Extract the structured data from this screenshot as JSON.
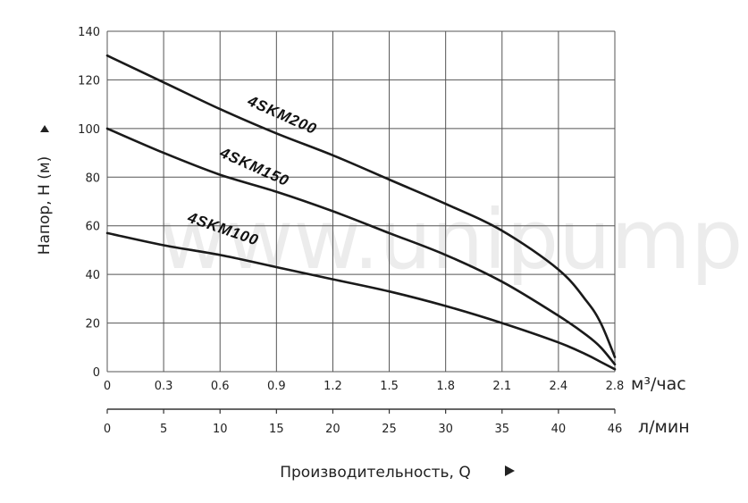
{
  "chart_data": {
    "type": "line",
    "ylabel": "Напор, Н (м)",
    "xlabel": "Производительность, Q",
    "ylim": [
      0,
      140
    ],
    "xlim": [
      0,
      2.8
    ],
    "grid": true,
    "y_ticks": [
      "0",
      "20",
      "40",
      "60",
      "80",
      "100",
      "120",
      "140"
    ],
    "x_ticks_m3h": [
      "0",
      "0.3",
      "0.6",
      "0.9",
      "1.2",
      "1.5",
      "1.8",
      "2.1",
      "2.4",
      "2.8"
    ],
    "x_unit_m3h": "м³/час",
    "x_ticks_lmin": [
      "0",
      "5",
      "10",
      "15",
      "20",
      "25",
      "30",
      "35",
      "40",
      "46"
    ],
    "x_unit_lmin": "л/мин",
    "watermark": "www.unipump.ru",
    "series": [
      {
        "name": "4SKM200",
        "x": [
          0,
          0.3,
          0.6,
          0.9,
          1.2,
          1.5,
          1.8,
          2.1,
          2.4,
          2.6,
          2.7,
          2.8
        ],
        "y": [
          130,
          119,
          108,
          98,
          89,
          79,
          69,
          58,
          42,
          29,
          20,
          6
        ]
      },
      {
        "name": "4SKM150",
        "x": [
          0,
          0.3,
          0.6,
          0.9,
          1.2,
          1.5,
          1.8,
          2.1,
          2.4,
          2.6,
          2.7,
          2.8
        ],
        "y": [
          100,
          90,
          81,
          74,
          66,
          57,
          48,
          37,
          23,
          15,
          10,
          3
        ]
      },
      {
        "name": "4SKM100",
        "x": [
          0,
          0.3,
          0.6,
          0.9,
          1.2,
          1.5,
          1.8,
          2.1,
          2.4,
          2.6,
          2.7,
          2.8
        ],
        "y": [
          57,
          52,
          48,
          43,
          38,
          33,
          27,
          20,
          12,
          7,
          4,
          1
        ]
      }
    ]
  }
}
